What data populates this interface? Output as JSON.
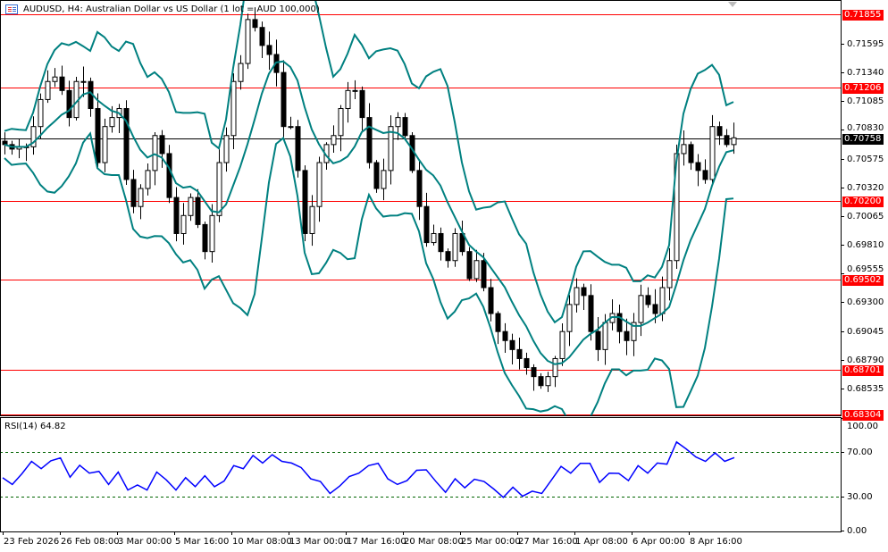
{
  "header": {
    "title": "AUDUSD, H4:  Australian Dollar vs US Dollar (1 lot = AUD 100,000)",
    "icon": "chart-window-icon"
  },
  "colors": {
    "candle": "#000000",
    "bollinger": "#008080",
    "level_line": "#ff0000",
    "current_price": "#000000",
    "rsi": "#0000ff",
    "rsi_levels": "#006400"
  },
  "chart_data": [
    {
      "type": "candlestick",
      "symbol": "AUDUSD",
      "timeframe": "H4",
      "indicator": "Bollinger Bands",
      "y_ticks": [
        "0.71595",
        "0.71340",
        "0.71085",
        "0.70830",
        "0.70575",
        "0.70320",
        "0.70065",
        "0.69810",
        "0.69555",
        "0.69300",
        "0.69045",
        "0.68790",
        "0.68535"
      ],
      "levels": [
        {
          "value": 0.71855,
          "label": "0.71855"
        },
        {
          "value": 0.71206,
          "label": "0.71206"
        },
        {
          "value": 0.702,
          "label": "0.70200"
        },
        {
          "value": 0.69502,
          "label": "0.69502"
        },
        {
          "value": 0.68701,
          "label": "0.68701"
        },
        {
          "value": 0.68304,
          "label": "0.68304"
        }
      ],
      "current_price": {
        "value": 0.70758,
        "label": "0.70758"
      },
      "x_ticks": [
        "23 Feb 2026",
        "26 Feb 08:00",
        "3 Mar 00:00",
        "5 Mar 16:00",
        "10 Mar 08:00",
        "13 Mar 00:00",
        "17 Mar 16:00",
        "20 Mar 08:00",
        "25 Mar 00:00",
        "27 Mar 16:00",
        "1 Apr 08:00",
        "6 Apr 00:00",
        "8 Apr 16:00"
      ],
      "closes": [
        0.707,
        0.7066,
        0.7068,
        0.7068,
        0.7086,
        0.711,
        0.7126,
        0.713,
        0.7118,
        0.7094,
        0.7126,
        0.7126,
        0.7102,
        0.7054,
        0.7086,
        0.7094,
        0.7102,
        0.7039,
        0.7015,
        0.7031,
        0.7047,
        0.7078,
        0.7062,
        0.7023,
        0.6991,
        0.7007,
        0.7023,
        0.6999,
        0.6975,
        0.7007,
        0.7054,
        0.7078,
        0.7126,
        0.7142,
        0.7181,
        0.7174,
        0.7158,
        0.715,
        0.7134,
        0.7086,
        0.7086,
        0.7047,
        0.6991,
        0.7015,
        0.7054,
        0.707,
        0.7078,
        0.7102,
        0.7118,
        0.7118,
        0.7094,
        0.7054,
        0.7031,
        0.7047,
        0.7086,
        0.7094,
        0.7078,
        0.7047,
        0.7015,
        0.6983,
        0.6991,
        0.6975,
        0.6967,
        0.6991,
        0.6975,
        0.6951,
        0.6967,
        0.6943,
        0.692,
        0.6904,
        0.6896,
        0.6888,
        0.688,
        0.6872,
        0.6864,
        0.6856,
        0.6864,
        0.688,
        0.6904,
        0.6928,
        0.6943,
        0.6936,
        0.6904,
        0.6888,
        0.6912,
        0.692,
        0.6904,
        0.6896,
        0.6912,
        0.6936,
        0.6928,
        0.692,
        0.6943,
        0.6967,
        0.7062,
        0.707,
        0.7054,
        0.7047,
        0.7039,
        0.7086,
        0.7078,
        0.707,
        0.7076
      ]
    },
    {
      "type": "line",
      "title": "RSI(14) 64.82",
      "y_ticks": [
        "100.00",
        "70.00",
        "30.00",
        "0.00"
      ],
      "ylim": [
        0,
        100
      ],
      "levels": [
        70,
        30
      ],
      "values": [
        46.9,
        41,
        50.5,
        61.5,
        55,
        62,
        64.6,
        47.4,
        58,
        51,
        52.6,
        41,
        52,
        36,
        40.5,
        36,
        52,
        45,
        36,
        47,
        39,
        48.7,
        39,
        44,
        57.7,
        55,
        66.7,
        60,
        67.4,
        61.5,
        60,
        56,
        46,
        43.6,
        33,
        39.5,
        48,
        51,
        57.7,
        59.7,
        46,
        41,
        44.4,
        53.6,
        54,
        43.6,
        34,
        46,
        38,
        45.6,
        43.6,
        37,
        29.5,
        38.5,
        30.5,
        35,
        33,
        44.9,
        57,
        51,
        59.7,
        59.7,
        42.8,
        51,
        50.8,
        44.4,
        57.7,
        51,
        60,
        59,
        78.7,
        72.5,
        65.4,
        61.5,
        69,
        61.5,
        64.8
      ]
    }
  ]
}
